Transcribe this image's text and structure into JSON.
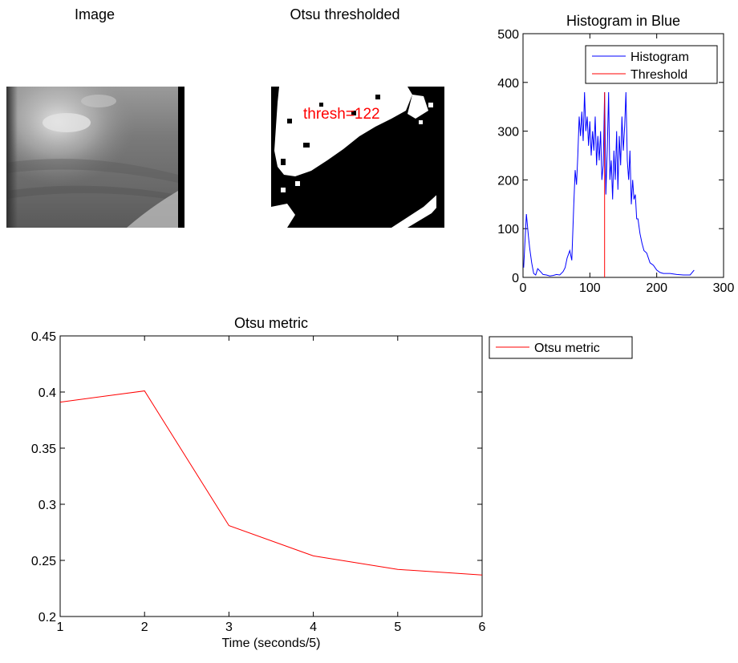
{
  "panels": {
    "image": {
      "title": "Image"
    },
    "otsu": {
      "title": "Otsu thresholded",
      "annotation": "thresh=122",
      "annotation_color": "#ff0000"
    }
  },
  "chart_data": [
    {
      "type": "line",
      "title": "Histogram in Blue",
      "xlabel": "",
      "ylabel": "",
      "xlim": [
        0,
        300
      ],
      "ylim": [
        0,
        500
      ],
      "xticks": [
        0,
        100,
        200,
        300
      ],
      "yticks": [
        0,
        100,
        200,
        300,
        400,
        500
      ],
      "grid": false,
      "legend_position": "top-right",
      "series": [
        {
          "name": "Histogram",
          "color": "#0000ff",
          "x": [
            1,
            5,
            8,
            10,
            13,
            16,
            19,
            22,
            26,
            30,
            35,
            40,
            45,
            50,
            55,
            60,
            63,
            66,
            70,
            73,
            76,
            78,
            80,
            82,
            84,
            86,
            88,
            90,
            92,
            94,
            96,
            98,
            100,
            102,
            104,
            106,
            108,
            110,
            112,
            114,
            116,
            118,
            120,
            122,
            124,
            126,
            128,
            130,
            132,
            134,
            136,
            138,
            140,
            142,
            144,
            146,
            148,
            150,
            152,
            154,
            156,
            158,
            160,
            162,
            164,
            166,
            168,
            170,
            172,
            175,
            178,
            181,
            185,
            190,
            195,
            200,
            205,
            210,
            220,
            230,
            240,
            250,
            256
          ],
          "values": [
            20,
            130,
            85,
            60,
            30,
            8,
            5,
            18,
            12,
            6,
            5,
            3,
            4,
            6,
            5,
            12,
            20,
            40,
            55,
            35,
            150,
            220,
            190,
            250,
            330,
            290,
            340,
            280,
            380,
            300,
            330,
            270,
            320,
            250,
            300,
            260,
            330,
            230,
            290,
            240,
            300,
            200,
            230,
            380,
            170,
            260,
            380,
            200,
            240,
            160,
            260,
            200,
            300,
            180,
            290,
            230,
            330,
            260,
            310,
            380,
            240,
            200,
            260,
            150,
            200,
            160,
            170,
            120,
            120,
            90,
            70,
            55,
            50,
            30,
            25,
            15,
            10,
            8,
            8,
            6,
            5,
            5,
            15
          ]
        },
        {
          "name": "Threshold",
          "color": "#ff0000",
          "x": [
            122,
            122
          ],
          "values": [
            0,
            380
          ]
        }
      ]
    },
    {
      "type": "line",
      "title": "Otsu metric",
      "xlabel": "Time (seconds/5)",
      "ylabel": "",
      "xlim": [
        1,
        6
      ],
      "ylim": [
        0.2,
        0.45
      ],
      "xticks": [
        1,
        2,
        3,
        4,
        5,
        6
      ],
      "yticks": [
        "0.2",
        "0.25",
        "0.3",
        "0.35",
        "0.4",
        "0.45"
      ],
      "grid": false,
      "legend_position": "outside-top-right",
      "series": [
        {
          "name": "Otsu metric",
          "color": "#ff0000",
          "x": [
            1,
            2,
            3,
            4,
            5,
            6
          ],
          "values": [
            0.391,
            0.401,
            0.281,
            0.254,
            0.242,
            0.237
          ]
        }
      ]
    }
  ]
}
